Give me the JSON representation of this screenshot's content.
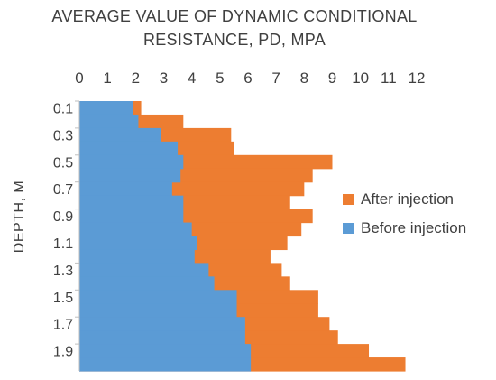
{
  "chart_data": {
    "type": "bar",
    "orientation": "horizontal",
    "stacked": false,
    "title_line1": "AVERAGE VALUE OF DYNAMIC CONDITIONAL",
    "title_line2": "RESISTANCE, PD, MPA",
    "ylabel": "DEPTH, M",
    "xlim": [
      0,
      12
    ],
    "x_ticks": [
      "0",
      "1",
      "2",
      "3",
      "4",
      "5",
      "6",
      "7",
      "8",
      "9",
      "10",
      "11",
      "12"
    ],
    "x_axis_position": "top",
    "depth": [
      0.1,
      0.2,
      0.3,
      0.4,
      0.5,
      0.6,
      0.7,
      0.8,
      0.9,
      1.0,
      1.1,
      1.2,
      1.3,
      1.4,
      1.5,
      1.6,
      1.7,
      1.8,
      1.9,
      2.0
    ],
    "y_ticks": [
      "0.1",
      "0.3",
      "0.5",
      "0.7",
      "0.9",
      "1.1",
      "1.3",
      "1.5",
      "1.7",
      "1.9"
    ],
    "series": [
      {
        "name": "After injection",
        "color": "#ED7D31",
        "values": [
          2.2,
          3.7,
          5.4,
          5.5,
          9.0,
          8.3,
          8.0,
          7.5,
          8.3,
          7.9,
          7.4,
          6.8,
          7.2,
          7.5,
          8.5,
          8.5,
          8.9,
          9.2,
          10.3,
          11.6
        ]
      },
      {
        "name": "Before injection",
        "color": "#5B9BD5",
        "values": [
          1.9,
          2.1,
          2.9,
          3.5,
          3.7,
          3.6,
          3.3,
          3.7,
          3.7,
          4.0,
          4.2,
          4.1,
          4.6,
          4.8,
          5.6,
          5.6,
          5.9,
          5.9,
          6.1,
          6.1
        ]
      }
    ],
    "legend_position": "right",
    "grid": false
  }
}
